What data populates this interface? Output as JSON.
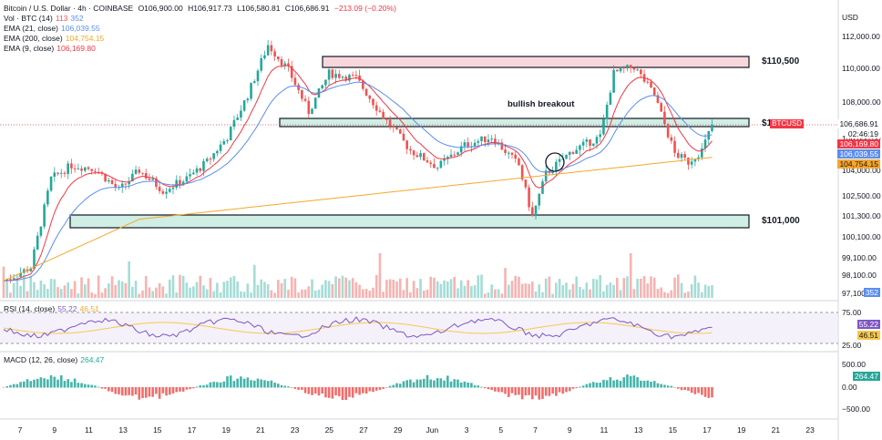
{
  "header": {
    "symbol": "Bitcoin / U.S. Dollar · 4h · COINBASE",
    "o": "O106,900.00",
    "h": "H106,917.73",
    "l": "L106,580.81",
    "c": "C106,686.91",
    "chg": "−213.09 (−0.20%)"
  },
  "legend": {
    "vol": "Vol · BTC (14)",
    "vol_a": "113",
    "vol_b": "352",
    "ema21": "EMA (21, close)",
    "ema21_v": "106,039.55",
    "ema200": "EMA (200, close)",
    "ema200_v": "104,754.15",
    "ema9": "EMA (9, close)",
    "ema9_v": "106,169.80"
  },
  "currency": "USD",
  "price_axis": [
    "112,000.00",
    "110,000.00",
    "108,000.00",
    "106,000.00",
    "104,000.00",
    "102,500.00",
    "101,300.00",
    "100,100.00",
    "99,100.00",
    "98,100.00",
    "97,100.00"
  ],
  "tags": {
    "ticker": "BTCUSD",
    "last": "106,686.91",
    "countdown": "02:46:19",
    "ema9": "106,169.80",
    "ema21": "106,039.55",
    "ema200": "104,754.15",
    "vol": "352"
  },
  "annotations": {
    "r1": "$110,500",
    "r2": "$107,000",
    "r3": "$101,000",
    "breakout": "bullish breakout"
  },
  "rsi": {
    "label": "RSI (14, close)",
    "v1": "55.22",
    "v2": "46.51",
    "axis": [
      "75.00",
      "55.22",
      "46.51",
      "25.00"
    ]
  },
  "macd": {
    "label": "MACD (12, 26, close)",
    "v": "264.47",
    "axis": [
      "500.00",
      "264.47",
      "0.00",
      "−500.00"
    ]
  },
  "time_axis": [
    "7",
    "9",
    "11",
    "13",
    "15",
    "17",
    "19",
    "21",
    "23",
    "25",
    "27",
    "29",
    "Jun",
    "3",
    "5",
    "7",
    "9",
    "11",
    "13",
    "15",
    "17",
    "19",
    "21",
    "23"
  ],
  "colors": {
    "up": "#26a69a",
    "down": "#ef5350",
    "ema9": "#f23645",
    "ema21": "#5b8def",
    "ema200": "#f7a62b",
    "rsi": "#7e57c2"
  },
  "chart_data": {
    "type": "candlestick",
    "ylim": [
      97100,
      112500
    ],
    "levels": [
      110500,
      107000,
      101000
    ]
  }
}
